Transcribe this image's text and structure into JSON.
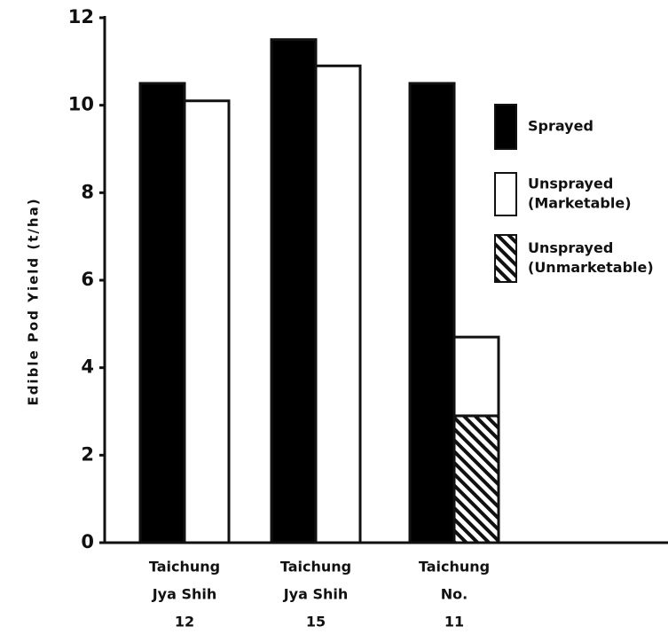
{
  "chart_data": {
    "type": "bar",
    "ylabel": "Edible Pod Yield (t/ha)",
    "categories": [
      [
        "Taichung",
        "Jya Shih",
        "12"
      ],
      [
        "Taichung",
        "Jya Shih",
        "15"
      ],
      [
        "Taichung",
        "No.",
        "11"
      ]
    ],
    "series": [
      {
        "name": [
          "Sprayed"
        ],
        "color": "#000000",
        "stack": "sprayed",
        "values": [
          10.5,
          11.5,
          10.5
        ]
      },
      {
        "name": [
          "Unsprayed",
          "(Marketable)"
        ],
        "color": "#ffffff",
        "stack": "unsprayed",
        "values": [
          10.1,
          10.9,
          1.8
        ]
      },
      {
        "name": [
          "Unsprayed",
          "(Unmarketable)"
        ],
        "color": "#ffffff",
        "hatch": true,
        "stack": "unsprayed",
        "values": [
          null,
          null,
          2.9
        ]
      }
    ],
    "ylim": [
      0,
      12
    ],
    "yticks": [
      0,
      2,
      4,
      6,
      8,
      10,
      12
    ],
    "grid": false
  }
}
